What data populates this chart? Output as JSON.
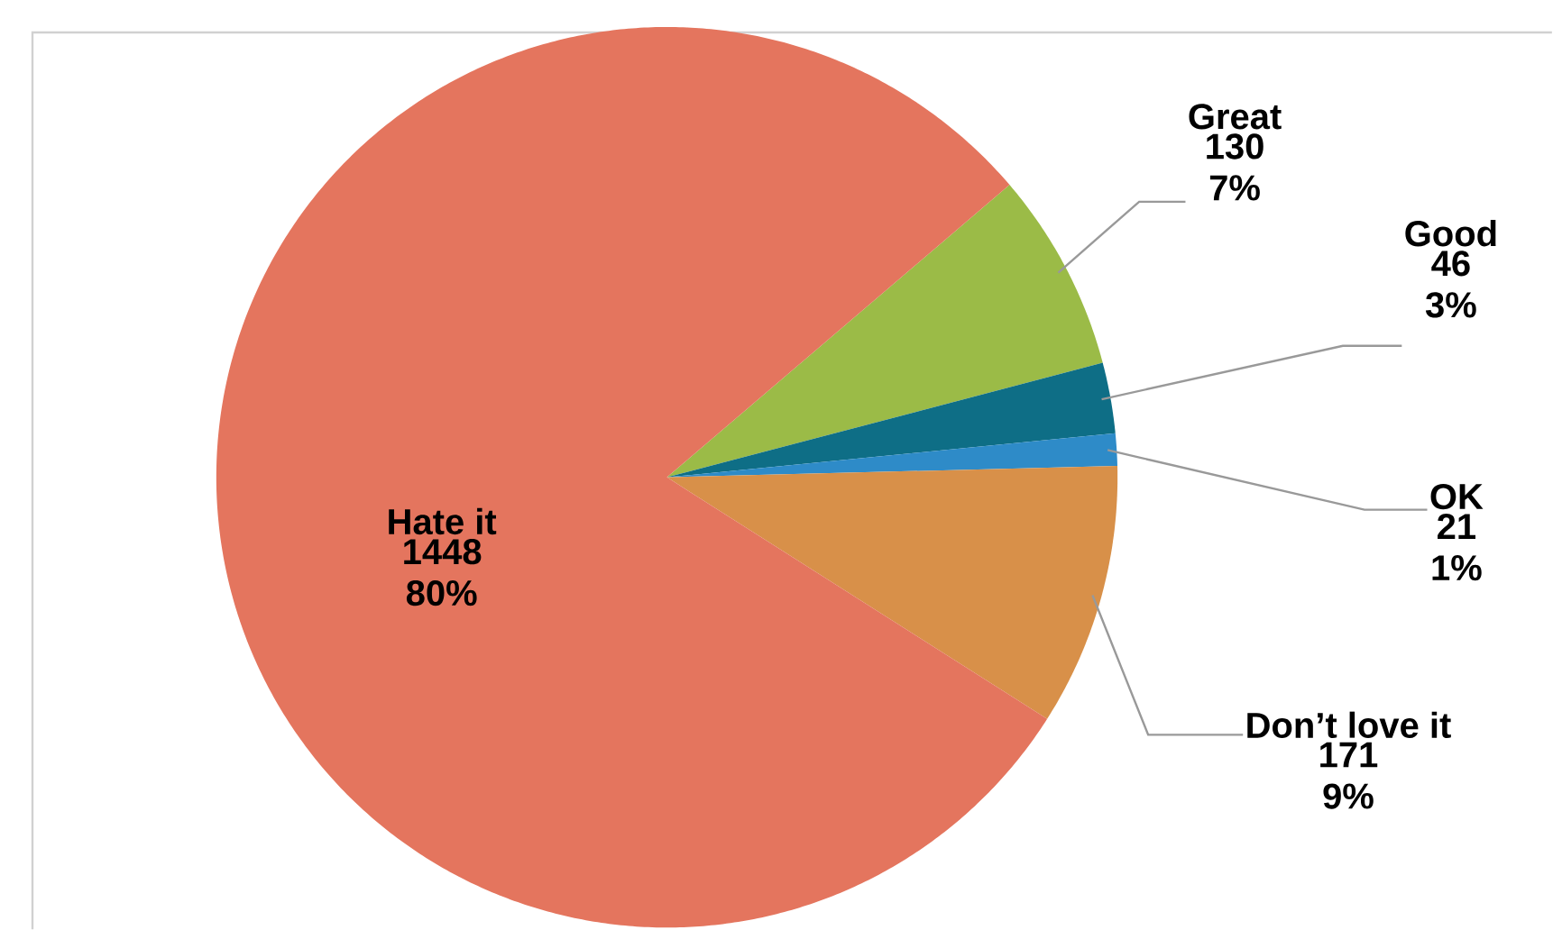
{
  "chart_data": {
    "type": "pie",
    "categories": [
      "Great",
      "Good",
      "OK",
      "Don’t love it",
      "Hate it"
    ],
    "values": [
      130,
      46,
      21,
      171,
      1448
    ],
    "colors": [
      "#9bbb47",
      "#0e6e86",
      "#2e8bc8",
      "#d89049",
      "#e4755e"
    ],
    "value_labels": [
      "130 7%",
      "46 3%",
      "21 1%",
      "171 9%",
      "1448 80%"
    ]
  }
}
